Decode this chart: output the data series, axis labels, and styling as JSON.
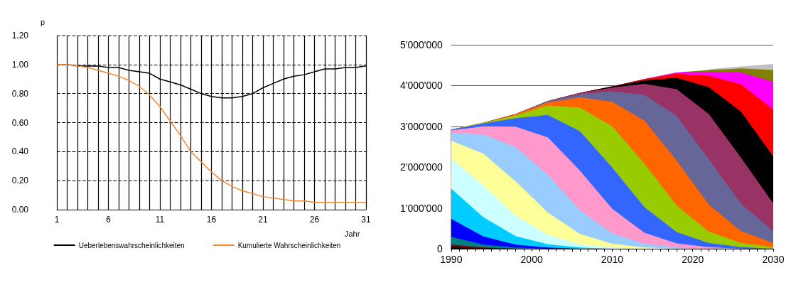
{
  "chart_data": [
    {
      "type": "line",
      "xlabel": "Jahr",
      "ylabel": "p",
      "xlim": [
        1,
        31
      ],
      "xticks": [
        1,
        {
          "value": 2,
          "label": null
        },
        {
          "value": 3,
          "label": null
        },
        {
          "value": 4,
          "label": null
        },
        {
          "value": 5,
          "label": null
        },
        6,
        {
          "value": 7,
          "label": null
        },
        {
          "value": 8,
          "label": null
        },
        {
          "value": 9,
          "label": null
        },
        {
          "value": 10,
          "label": null
        },
        11,
        {
          "value": 12,
          "label": null
        },
        {
          "value": 13,
          "label": null
        },
        {
          "value": 14,
          "label": null
        },
        {
          "value": 15,
          "label": null
        },
        16,
        {
          "value": 17,
          "label": null
        },
        {
          "value": 18,
          "label": null
        },
        {
          "value": 19,
          "label": null
        },
        {
          "value": 20,
          "label": null
        },
        21,
        {
          "value": 22,
          "label": null
        },
        {
          "value": 23,
          "label": null
        },
        {
          "value": 24,
          "label": null
        },
        {
          "value": 25,
          "label": null
        },
        26,
        {
          "value": 27,
          "label": null
        },
        {
          "value": 28,
          "label": null
        },
        {
          "value": 29,
          "label": null
        },
        {
          "value": 30,
          "label": null
        },
        31
      ],
      "ylim": [
        0,
        1.2
      ],
      "yticks": [
        {
          "value": 0,
          "label": "0.00"
        },
        {
          "value": 0.2,
          "label": "0.20"
        },
        {
          "value": 0.4,
          "label": "0.40"
        },
        {
          "value": 0.6,
          "label": "0.60"
        },
        {
          "value": 0.8,
          "label": "0.80"
        },
        {
          "value": 1,
          "label": "1.00"
        },
        {
          "value": 1.2,
          "label": "1.20"
        }
      ],
      "grid": true,
      "legend": "bottom",
      "x": [
        1,
        2,
        3,
        4,
        5,
        6,
        7,
        8,
        9,
        10,
        11,
        12,
        13,
        14,
        15,
        16,
        17,
        18,
        19,
        20,
        21,
        22,
        23,
        24,
        25,
        26,
        27,
        28,
        29,
        30,
        31
      ],
      "series": [
        {
          "name": "Ueberlebenswahrscheinlichkeiten",
          "color": "#000000",
          "values": [
            1.0,
            1.0,
            0.99,
            0.99,
            0.99,
            0.98,
            0.98,
            0.96,
            0.95,
            0.94,
            0.9,
            0.88,
            0.86,
            0.83,
            0.8,
            0.78,
            0.77,
            0.77,
            0.78,
            0.8,
            0.84,
            0.87,
            0.9,
            0.92,
            0.93,
            0.95,
            0.97,
            0.97,
            0.98,
            0.98,
            0.99
          ]
        },
        {
          "name": "Kumulierte Wahrscheinlichkeiten",
          "color": "#f58a33",
          "values": [
            1.0,
            1.0,
            0.99,
            0.98,
            0.96,
            0.94,
            0.92,
            0.89,
            0.85,
            0.79,
            0.71,
            0.61,
            0.51,
            0.4,
            0.33,
            0.26,
            0.2,
            0.16,
            0.13,
            0.11,
            0.09,
            0.08,
            0.07,
            0.06,
            0.06,
            0.05,
            0.05,
            0.05,
            0.05,
            0.05,
            0.05
          ]
        }
      ]
    },
    {
      "type": "area",
      "stacked": true,
      "grid": "y",
      "xlim": [
        1990,
        2030
      ],
      "xticks": [
        1990,
        {
          "value": 1991,
          "label": null
        },
        {
          "value": 1992,
          "label": null
        },
        {
          "value": 1993,
          "label": null
        },
        {
          "value": 1994,
          "label": null
        },
        {
          "value": 1995,
          "label": null
        },
        {
          "value": 1996,
          "label": null
        },
        {
          "value": 1997,
          "label": null
        },
        {
          "value": 1998,
          "label": null
        },
        {
          "value": 1999,
          "label": null
        },
        2000,
        {
          "value": 2001,
          "label": null
        },
        {
          "value": 2002,
          "label": null
        },
        {
          "value": 2003,
          "label": null
        },
        {
          "value": 2004,
          "label": null
        },
        {
          "value": 2005,
          "label": null
        },
        {
          "value": 2006,
          "label": null
        },
        {
          "value": 2007,
          "label": null
        },
        {
          "value": 2008,
          "label": null
        },
        {
          "value": 2009,
          "label": null
        },
        2010,
        {
          "value": 2011,
          "label": null
        },
        {
          "value": 2012,
          "label": null
        },
        {
          "value": 2013,
          "label": null
        },
        {
          "value": 2014,
          "label": null
        },
        {
          "value": 2015,
          "label": null
        },
        {
          "value": 2016,
          "label": null
        },
        {
          "value": 2017,
          "label": null
        },
        {
          "value": 2018,
          "label": null
        },
        {
          "value": 2019,
          "label": null
        },
        2020,
        {
          "value": 2021,
          "label": null
        },
        {
          "value": 2022,
          "label": null
        },
        {
          "value": 2023,
          "label": null
        },
        {
          "value": 2024,
          "label": null
        },
        {
          "value": 2025,
          "label": null
        },
        {
          "value": 2026,
          "label": null
        },
        {
          "value": 2027,
          "label": null
        },
        {
          "value": 2028,
          "label": null
        },
        {
          "value": 2029,
          "label": null
        },
        2030
      ],
      "ylim": [
        0,
        5000000
      ],
      "yticks": [
        0,
        {
          "value": 1000000,
          "label": "1'000'000"
        },
        {
          "value": 2000000,
          "label": "2'000'000"
        },
        {
          "value": 3000000,
          "label": "3'000'000"
        },
        {
          "value": 4000000,
          "label": "4'000'000"
        },
        {
          "value": 5000000,
          "label": "5'000'000"
        }
      ],
      "x": [
        1990,
        1994,
        1998,
        2002,
        2006,
        2010,
        2014,
        2018,
        2022,
        2026,
        2030
      ],
      "series": [
        {
          "color": "#000000",
          "values": [
            40000,
            10000,
            0,
            0,
            0,
            0,
            0,
            0,
            0,
            0,
            0
          ]
        },
        {
          "color": "#800000",
          "values": [
            60000,
            20000,
            0,
            0,
            0,
            0,
            0,
            0,
            0,
            0,
            0
          ]
        },
        {
          "color": "#008080",
          "values": [
            190000,
            70000,
            30000,
            0,
            0,
            0,
            0,
            0,
            0,
            0,
            0
          ]
        },
        {
          "color": "#0000ff",
          "values": [
            440000,
            200000,
            70000,
            30000,
            0,
            0,
            0,
            0,
            0,
            0,
            0
          ]
        },
        {
          "color": "#00ccff",
          "values": [
            740000,
            470000,
            210000,
            80000,
            30000,
            0,
            0,
            0,
            0,
            0,
            0
          ]
        },
        {
          "color": "#ccffff",
          "values": [
            740000,
            780000,
            500000,
            230000,
            80000,
            30000,
            0,
            0,
            0,
            0,
            0
          ]
        },
        {
          "color": "#ffff99",
          "values": [
            440000,
            780000,
            840000,
            550000,
            250000,
            90000,
            30000,
            0,
            0,
            0,
            0
          ]
        },
        {
          "color": "#99ccff",
          "values": [
            190000,
            470000,
            840000,
            920000,
            580000,
            260000,
            90000,
            30000,
            0,
            0,
            0
          ]
        },
        {
          "color": "#ff99cc",
          "values": [
            60000,
            200000,
            500000,
            920000,
            970000,
            600000,
            270000,
            100000,
            40000,
            0,
            0
          ]
        },
        {
          "color": "#3366ff",
          "values": [
            20000,
            70000,
            210000,
            550000,
            970000,
            1010000,
            630000,
            280000,
            100000,
            40000,
            0
          ]
        },
        {
          "color": "#99cc00",
          "values": [
            0,
            20000,
            70000,
            230000,
            580000,
            1010000,
            1060000,
            650000,
            280000,
            100000,
            40000
          ]
        },
        {
          "color": "#ff6600",
          "values": [
            0,
            0,
            30000,
            80000,
            250000,
            600000,
            1060000,
            1100000,
            660000,
            290000,
            100000
          ]
        },
        {
          "color": "#666699",
          "values": [
            0,
            0,
            0,
            30000,
            80000,
            260000,
            630000,
            1100000,
            1110000,
            670000,
            290000
          ]
        },
        {
          "color": "#993366",
          "values": [
            0,
            0,
            0,
            0,
            30000,
            90000,
            270000,
            650000,
            1110000,
            1130000,
            680000
          ]
        },
        {
          "color": "#000000",
          "values": [
            0,
            0,
            0,
            0,
            0,
            30000,
            90000,
            280000,
            660000,
            1130000,
            1150000
          ]
        },
        {
          "color": "#ff0000",
          "values": [
            0,
            0,
            0,
            0,
            0,
            0,
            30000,
            100000,
            280000,
            670000,
            1150000
          ]
        },
        {
          "color": "#ff00ff",
          "values": [
            0,
            0,
            0,
            0,
            0,
            0,
            0,
            30000,
            100000,
            290000,
            680000
          ]
        },
        {
          "color": "#808000",
          "values": [
            0,
            0,
            0,
            0,
            0,
            0,
            0,
            0,
            40000,
            100000,
            290000
          ]
        },
        {
          "color": "#c0c0c0",
          "values": [
            null,
            null,
            null,
            null,
            null,
            null,
            null,
            null,
            20000,
            50000,
            150000
          ]
        }
      ]
    }
  ]
}
